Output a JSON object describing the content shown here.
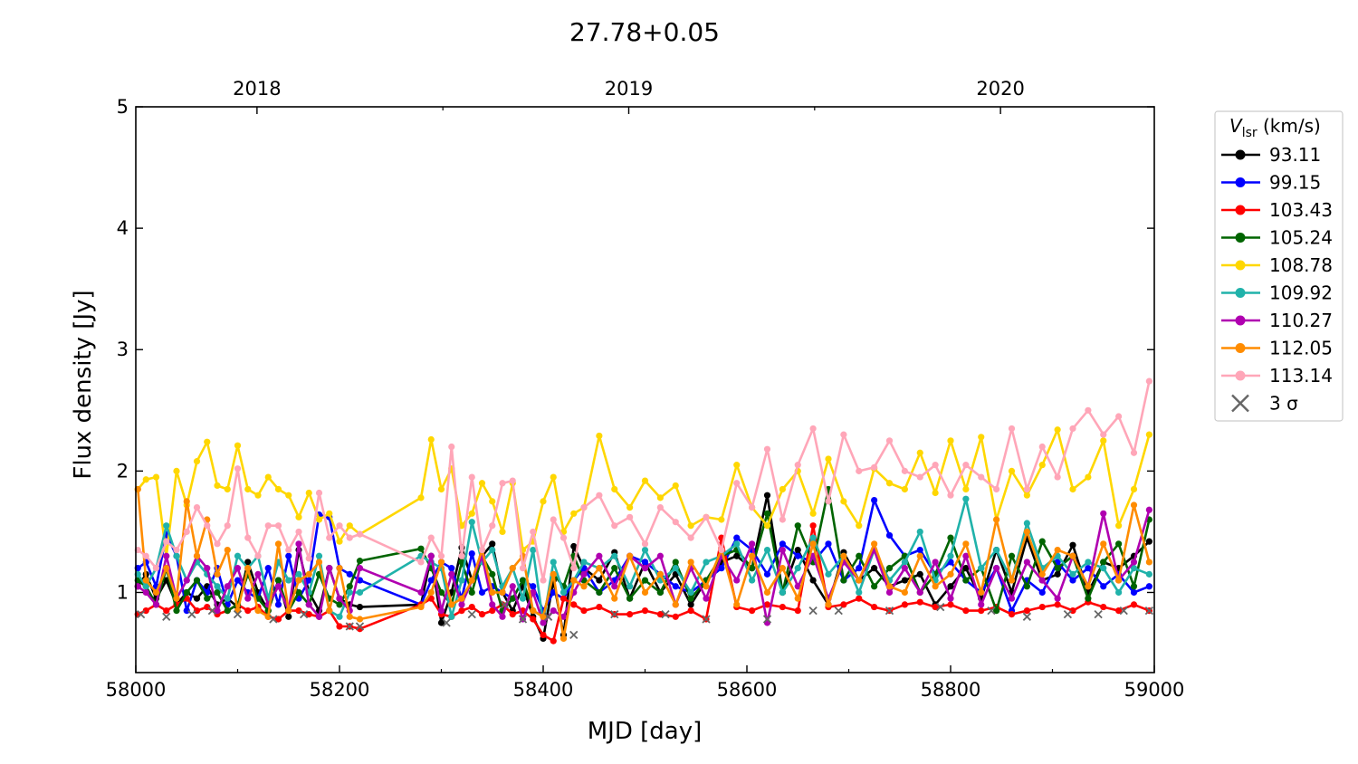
{
  "chart_data": {
    "type": "line",
    "title": "27.78+0.05",
    "xlabel": "MJD [day]",
    "ylabel": "Flux density [Jy]",
    "xlim": [
      58000,
      59000
    ],
    "ylim": [
      0.34,
      5
    ],
    "xticks": [
      "58000",
      "58200",
      "58400",
      "58600",
      "58800",
      "59000"
    ],
    "yticks": [
      "1",
      "2",
      "3",
      "4",
      "5"
    ],
    "top_axis": {
      "labels": [
        "2018",
        "2019",
        "2020"
      ],
      "mjd": [
        58119,
        58484,
        58849
      ]
    },
    "legend": {
      "title_main": "V",
      "title_sub": "lsr",
      "title_unit": " (km/s)",
      "position": "outside-right",
      "sigma_label": "3 σ"
    },
    "x": [
      58002,
      58010,
      58020,
      58030,
      58040,
      58050,
      58060,
      58070,
      58080,
      58090,
      58100,
      58110,
      58120,
      58130,
      58140,
      58150,
      58160,
      58170,
      58180,
      58190,
      58200,
      58210,
      58220,
      58280,
      58290,
      58300,
      58310,
      58320,
      58330,
      58340,
      58350,
      58360,
      58370,
      58380,
      58390,
      58400,
      58410,
      58420,
      58430,
      58440,
      58455,
      58470,
      58485,
      58500,
      58515,
      58530,
      58545,
      58560,
      58575,
      58590,
      58605,
      58620,
      58635,
      58650,
      58665,
      58680,
      58695,
      58710,
      58725,
      58740,
      58755,
      58770,
      58785,
      58800,
      58815,
      58830,
      58845,
      58860,
      58875,
      58890,
      58905,
      58920,
      58935,
      58950,
      58965,
      58980,
      58995
    ],
    "series": [
      {
        "name": "93.11",
        "color": "#000000",
        "values": [
          1.05,
          1.15,
          0.95,
          1.1,
          0.9,
          1.0,
          0.95,
          1.05,
          0.9,
          0.95,
          0.88,
          1.25,
          1.0,
          0.85,
          1.1,
          0.8,
          1.35,
          1.0,
          0.85,
          1.2,
          0.95,
          0.9,
          0.88,
          0.9,
          1.3,
          0.75,
          1.0,
          1.37,
          1.1,
          1.3,
          1.4,
          1.0,
          0.85,
          1.05,
          0.8,
          0.62,
          1.1,
          0.65,
          1.38,
          1.2,
          1.1,
          1.33,
          0.95,
          1.25,
          1.0,
          1.15,
          0.9,
          1.1,
          1.25,
          1.3,
          1.2,
          1.8,
          1.0,
          1.35,
          1.1,
          0.9,
          1.33,
          1.1,
          1.2,
          1.05,
          1.1,
          1.15,
          0.9,
          1.05,
          1.2,
          0.95,
          1.35,
          1.0,
          1.45,
          1.1,
          1.15,
          1.39,
          1.0,
          1.25,
          1.2,
          1.3,
          1.42
        ]
      },
      {
        "name": "99.15",
        "color": "#0000ff",
        "values": [
          1.2,
          1.25,
          1.05,
          1.48,
          1.3,
          0.85,
          1.1,
          1.0,
          1.2,
          0.9,
          1.1,
          1.0,
          0.95,
          1.2,
          0.9,
          1.3,
          0.95,
          1.1,
          1.64,
          1.62,
          1.2,
          1.15,
          1.1,
          0.9,
          1.1,
          1.25,
          1.2,
          0.95,
          1.32,
          1.0,
          1.05,
          1.0,
          0.95,
          1.1,
          1.05,
          0.85,
          1.0,
          0.95,
          1.1,
          1.2,
          1.0,
          1.1,
          1.3,
          1.25,
          1.15,
          1.05,
          1.0,
          1.1,
          1.2,
          1.45,
          1.35,
          1.15,
          1.4,
          1.3,
          1.25,
          1.4,
          1.1,
          1.2,
          1.76,
          1.47,
          1.3,
          1.35,
          1.15,
          1.25,
          1.1,
          1.0,
          1.2,
          0.85,
          1.1,
          1.0,
          1.25,
          1.1,
          1.2,
          1.05,
          1.15,
          1.0,
          1.05
        ]
      },
      {
        "name": "103.43",
        "color": "#ff0000",
        "values": [
          0.82,
          0.85,
          0.9,
          0.85,
          0.9,
          0.95,
          0.85,
          0.88,
          0.82,
          0.85,
          0.9,
          0.85,
          0.88,
          0.8,
          0.78,
          0.85,
          0.85,
          0.82,
          0.8,
          0.85,
          0.72,
          0.72,
          0.7,
          0.9,
          0.95,
          0.82,
          0.8,
          0.85,
          0.88,
          0.82,
          0.85,
          0.9,
          0.82,
          0.85,
          0.78,
          0.65,
          0.6,
          0.95,
          0.9,
          0.85,
          0.88,
          0.82,
          0.82,
          0.85,
          0.82,
          0.8,
          0.85,
          0.78,
          1.45,
          0.88,
          0.85,
          0.9,
          0.88,
          0.85,
          1.55,
          0.88,
          0.9,
          0.95,
          0.88,
          0.85,
          0.9,
          0.92,
          0.88,
          0.9,
          0.85,
          0.85,
          0.88,
          0.82,
          0.85,
          0.88,
          0.9,
          0.85,
          0.92,
          0.88,
          0.85,
          0.9,
          0.85
        ]
      },
      {
        "name": "105.24",
        "color": "#006400",
        "values": [
          1.1,
          1.05,
          0.9,
          1.2,
          0.85,
          1.0,
          1.1,
          0.95,
          1.0,
          0.85,
          0.9,
          1.15,
          0.95,
          0.85,
          1.1,
          0.85,
          1.0,
          0.9,
          1.15,
          0.95,
          0.9,
          1.05,
          1.26,
          1.36,
          1.2,
          1.0,
          0.9,
          1.25,
          1.0,
          1.3,
          1.15,
          0.85,
          0.95,
          1.1,
          0.85,
          0.8,
          1.15,
          1.05,
          1.3,
          1.1,
          1.0,
          1.2,
          0.95,
          1.1,
          1.0,
          1.25,
          0.95,
          1.1,
          1.3,
          1.35,
          1.2,
          1.65,
          1.0,
          1.55,
          1.25,
          1.85,
          1.1,
          1.3,
          1.05,
          1.2,
          1.3,
          1.0,
          1.15,
          1.45,
          1.1,
          1.2,
          0.85,
          1.3,
          1.05,
          1.42,
          1.2,
          1.3,
          0.95,
          1.25,
          1.4,
          1.05,
          1.6
        ]
      },
      {
        "name": "108.78",
        "color": "#ffd700",
        "values": [
          1.85,
          1.93,
          1.95,
          1.3,
          2.0,
          1.72,
          2.08,
          2.24,
          1.88,
          1.85,
          2.21,
          1.85,
          1.8,
          1.95,
          1.85,
          1.8,
          1.62,
          1.82,
          1.6,
          1.65,
          1.42,
          1.55,
          1.48,
          1.78,
          2.26,
          1.85,
          2.02,
          1.55,
          1.65,
          1.9,
          1.75,
          1.5,
          1.9,
          1.35,
          1.42,
          1.75,
          1.95,
          1.5,
          1.65,
          1.7,
          2.29,
          1.85,
          1.7,
          1.92,
          1.78,
          1.88,
          1.55,
          1.62,
          1.6,
          2.05,
          1.7,
          1.55,
          1.85,
          2.0,
          1.65,
          2.1,
          1.75,
          1.55,
          2.02,
          1.9,
          1.85,
          2.15,
          1.82,
          2.25,
          1.85,
          2.28,
          1.6,
          2.0,
          1.8,
          2.05,
          2.34,
          1.85,
          1.95,
          2.25,
          1.55,
          1.85,
          2.3
        ]
      },
      {
        "name": "109.92",
        "color": "#20b2aa",
        "values": [
          1.15,
          1.05,
          1.2,
          1.55,
          1.3,
          1.1,
          1.25,
          1.15,
          1.05,
          0.95,
          1.3,
          1.2,
          1.3,
          0.95,
          1.25,
          1.1,
          1.15,
          1.0,
          1.3,
          0.85,
          0.8,
          1.0,
          1.0,
          1.3,
          1.25,
          1.2,
          0.8,
          1.1,
          1.58,
          1.25,
          1.35,
          1.05,
          1.2,
          0.95,
          1.35,
          0.75,
          1.25,
          1.0,
          1.1,
          1.25,
          1.2,
          1.3,
          1.05,
          1.35,
          1.1,
          1.2,
          1.0,
          1.25,
          1.3,
          1.4,
          1.1,
          1.35,
          1.0,
          1.2,
          1.45,
          1.15,
          1.3,
          1.0,
          1.35,
          1.1,
          1.25,
          1.5,
          1.1,
          1.3,
          1.77,
          1.2,
          1.35,
          1.1,
          1.57,
          1.2,
          1.3,
          1.15,
          1.25,
          1.2,
          1.0,
          1.2,
          1.15
        ]
      },
      {
        "name": "110.27",
        "color": "#b000b0",
        "values": [
          1.05,
          1.0,
          0.9,
          1.3,
          0.95,
          1.1,
          1.3,
          1.2,
          0.85,
          1.05,
          1.2,
          0.95,
          1.15,
          0.9,
          1.05,
          0.85,
          1.4,
          0.9,
          0.8,
          1.2,
          0.95,
          0.85,
          1.2,
          1.0,
          1.3,
          0.85,
          1.15,
          0.9,
          1.1,
          1.3,
          0.9,
          0.8,
          1.05,
          0.78,
          1.0,
          0.75,
          0.85,
          0.8,
          1.0,
          1.15,
          1.3,
          1.05,
          1.3,
          1.2,
          1.3,
          0.9,
          1.2,
          0.95,
          1.3,
          1.1,
          1.4,
          0.75,
          1.35,
          1.05,
          1.3,
          0.95,
          1.25,
          1.1,
          1.35,
          1.0,
          1.2,
          1.0,
          1.25,
          0.95,
          1.3,
          0.9,
          1.2,
          0.95,
          1.25,
          1.1,
          0.95,
          1.3,
          1.05,
          1.65,
          1.1,
          1.25,
          1.68
        ]
      },
      {
        "name": "112.05",
        "color": "#ff8c00",
        "values": [
          1.85,
          1.1,
          1.0,
          1.2,
          0.95,
          1.75,
          1.3,
          1.6,
          1.15,
          1.35,
          0.85,
          1.2,
          0.85,
          0.8,
          1.4,
          0.85,
          1.1,
          1.15,
          1.25,
          0.85,
          1.2,
          0.8,
          0.78,
          0.88,
          1.0,
          1.25,
          0.9,
          0.95,
          1.1,
          1.35,
          1.0,
          1.0,
          1.2,
          1.3,
          0.85,
          0.8,
          1.15,
          0.62,
          1.1,
          1.05,
          1.2,
          0.95,
          1.3,
          1.0,
          1.15,
          0.9,
          1.25,
          1.05,
          1.35,
          0.9,
          1.3,
          1.0,
          1.2,
          0.95,
          1.4,
          0.9,
          1.3,
          1.1,
          1.4,
          1.05,
          1.0,
          1.3,
          1.05,
          1.15,
          1.4,
          1.0,
          1.6,
          1.1,
          1.5,
          1.15,
          1.35,
          1.3,
          1.05,
          1.4,
          1.1,
          1.72,
          1.25
        ]
      },
      {
        "name": "113.14",
        "color": "#ffa6b8",
        "values": [
          1.35,
          1.3,
          1.2,
          1.42,
          1.35,
          1.5,
          1.7,
          1.55,
          1.4,
          1.55,
          2.02,
          1.45,
          1.3,
          1.55,
          1.55,
          1.35,
          1.5,
          1.28,
          1.82,
          1.45,
          1.55,
          1.45,
          1.48,
          1.25,
          1.45,
          1.3,
          2.2,
          1.3,
          1.95,
          1.35,
          1.55,
          1.9,
          1.92,
          1.2,
          1.5,
          1.1,
          1.6,
          1.45,
          1.2,
          1.7,
          1.8,
          1.55,
          1.62,
          1.4,
          1.7,
          1.58,
          1.45,
          1.62,
          1.35,
          1.9,
          1.7,
          2.18,
          1.6,
          2.05,
          2.35,
          1.75,
          2.3,
          2.0,
          2.03,
          2.25,
          2.0,
          1.95,
          2.05,
          1.8,
          2.05,
          1.95,
          1.85,
          2.35,
          1.85,
          2.2,
          1.95,
          2.35,
          2.5,
          2.3,
          2.45,
          2.15,
          2.74
        ]
      }
    ],
    "sigma_points": {
      "color": "#666666",
      "x": [
        58005,
        58030,
        58055,
        58075,
        58100,
        58135,
        58165,
        58210,
        58220,
        58305,
        58330,
        58362,
        58380,
        58405,
        58430,
        58470,
        58520,
        58560,
        58620,
        58665,
        58690,
        58740,
        58790,
        58840,
        58875,
        58915,
        58945,
        58970,
        58995
      ],
      "y": [
        0.82,
        0.8,
        0.82,
        0.85,
        0.82,
        0.78,
        0.82,
        0.72,
        0.72,
        0.75,
        0.82,
        0.9,
        0.78,
        0.8,
        0.65,
        0.82,
        0.82,
        0.78,
        0.78,
        0.85,
        0.85,
        0.85,
        0.88,
        0.85,
        0.8,
        0.82,
        0.82,
        0.85,
        0.85
      ]
    }
  }
}
